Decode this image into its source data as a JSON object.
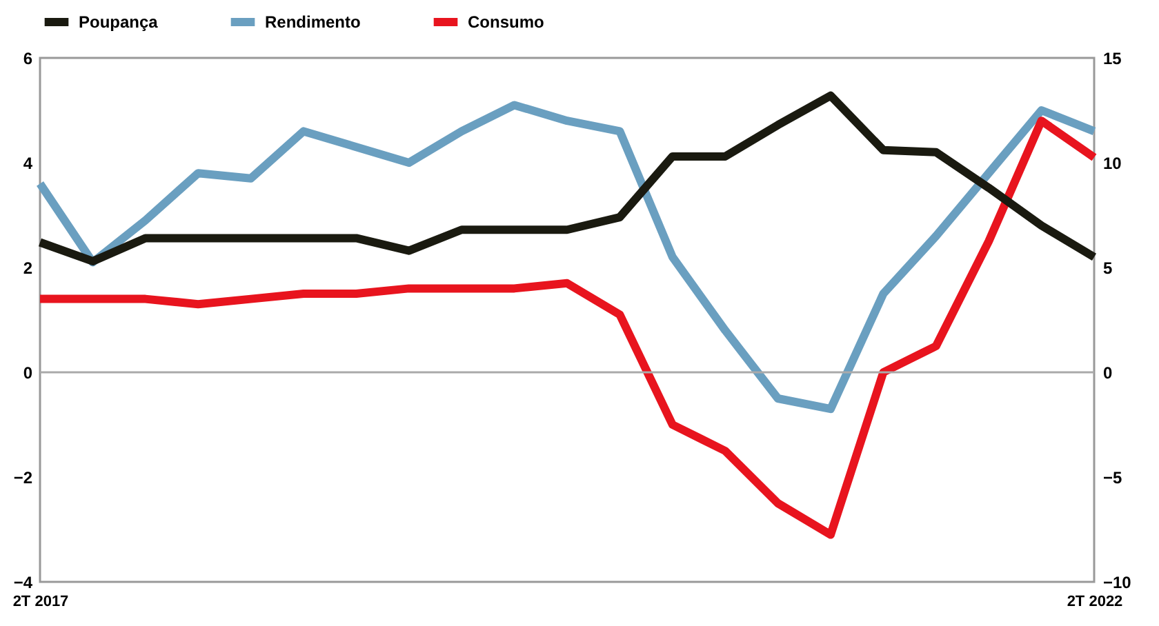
{
  "chart_data": {
    "type": "line",
    "categories": [
      "2T 2017",
      null,
      null,
      null,
      null,
      null,
      null,
      null,
      null,
      null,
      null,
      null,
      null,
      null,
      null,
      null,
      null,
      null,
      null,
      null,
      "2T 2022"
    ],
    "series": [
      {
        "name": "Poupança",
        "color": "#1a1a10",
        "axis": "y2",
        "values": [
          6.2,
          5.3,
          6.4,
          6.4,
          6.4,
          6.4,
          6.4,
          5.8,
          6.8,
          6.8,
          6.8,
          7.4,
          10.3,
          10.3,
          11.8,
          13.2,
          10.6,
          10.5,
          8.8,
          7.0,
          5.5
        ]
      },
      {
        "name": "Rendimento",
        "color": "#6a9fc0",
        "values": [
          3.6,
          2.1,
          2.9,
          3.8,
          3.7,
          4.6,
          4.3,
          4.0,
          4.6,
          5.1,
          4.8,
          4.6,
          2.2,
          0.8,
          -0.5,
          -0.7,
          1.5,
          2.6,
          3.8,
          5.0,
          4.6
        ]
      },
      {
        "name": "Consumo",
        "color": "#e8141e",
        "values": [
          1.4,
          1.4,
          1.4,
          1.3,
          1.4,
          1.5,
          1.5,
          1.6,
          1.6,
          1.6,
          1.7,
          1.1,
          -1.0,
          -1.5,
          -2.5,
          -3.1,
          0.0,
          0.5,
          2.5,
          4.8,
          4.1
        ]
      }
    ],
    "ylim": [
      -4,
      6
    ],
    "yticks": [
      -4,
      -2,
      0,
      2,
      4,
      6
    ],
    "y2lim": [
      -10,
      15
    ],
    "y2ticks": [
      -10,
      -5,
      0,
      5,
      10,
      15
    ],
    "ref_lines": [
      {
        "axis": "y",
        "value": 0,
        "color": "#aaaaaa"
      }
    ],
    "legend": "top left",
    "grid": false,
    "line_style": "solid"
  }
}
